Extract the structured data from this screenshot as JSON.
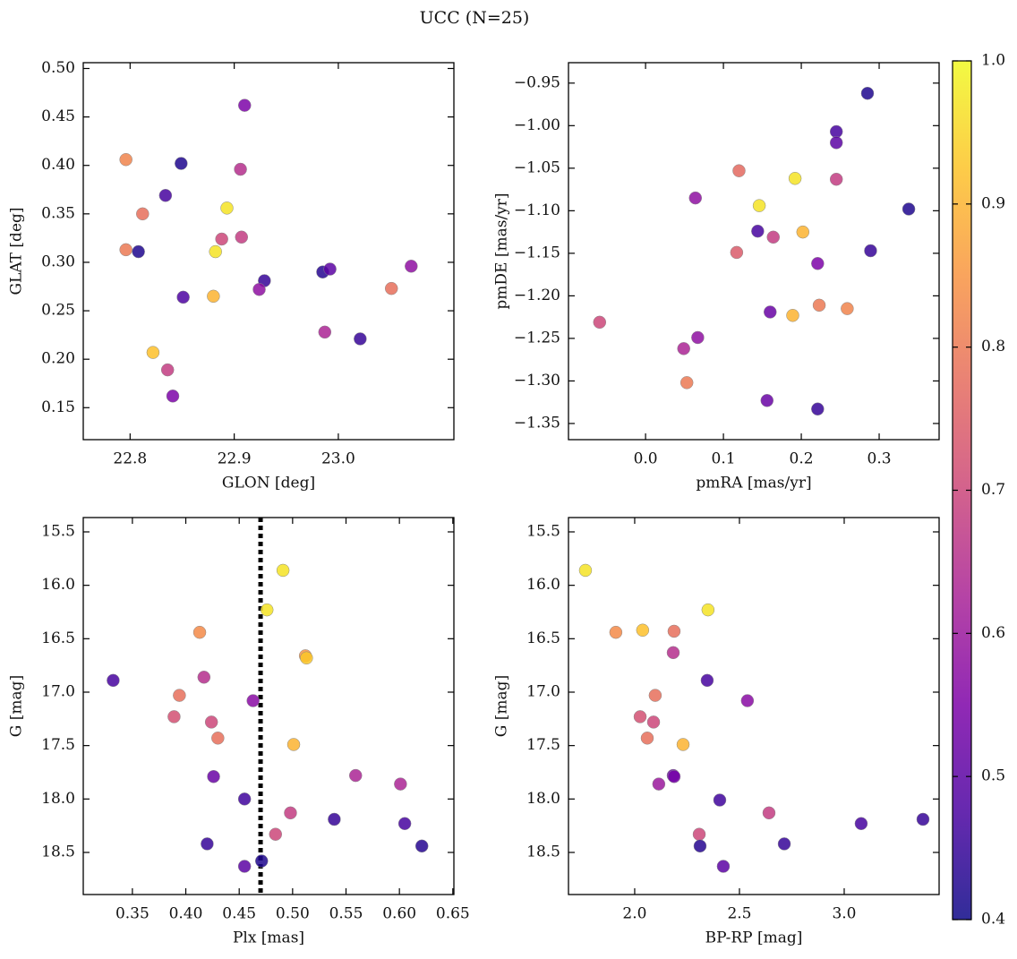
{
  "title": "UCC (N=25)",
  "colorbar": {
    "colormap": "plasma",
    "clim": [
      0.4,
      1.0
    ],
    "ticks": [
      0.4,
      0.5,
      0.6,
      0.7,
      0.8,
      0.9,
      {
        "value": 1.0,
        "label": "1.0"
      }
    ]
  },
  "chart_data": [
    {
      "type": "scatter",
      "xlabel": "GLON [deg]",
      "ylabel": "GLAT [deg]",
      "xlim": [
        22.755,
        23.111
      ],
      "ylim": [
        0.117,
        0.506
      ],
      "xticks": [
        22.8,
        22.9,
        {
          "value": 23.0,
          "label": "23.0"
        }
      ],
      "yticks": [
        0.15,
        {
          "value": 0.2,
          "label": "0.20"
        },
        0.25,
        {
          "value": 0.3,
          "label": "0.30"
        },
        0.35,
        {
          "value": 0.4,
          "label": "0.40"
        },
        0.45,
        {
          "value": 0.5,
          "label": "0.50"
        }
      ],
      "x": [
        22.796,
        22.849,
        22.91,
        22.906,
        22.834,
        22.812,
        22.893,
        22.888,
        22.907,
        22.796,
        22.808,
        22.882,
        22.929,
        22.924,
        22.851,
        22.88,
        22.985,
        22.992,
        23.07,
        23.051,
        22.987,
        23.021,
        22.822,
        22.836,
        22.841
      ],
      "y": [
        0.406,
        0.402,
        0.462,
        0.396,
        0.369,
        0.35,
        0.356,
        0.324,
        0.326,
        0.313,
        0.311,
        0.311,
        0.281,
        0.272,
        0.264,
        0.265,
        0.29,
        0.293,
        0.296,
        0.273,
        0.228,
        0.221,
        0.207,
        0.189,
        0.162
      ],
      "c": [
        0.82,
        0.42,
        0.55,
        0.65,
        0.47,
        0.78,
        0.97,
        0.7,
        0.68,
        0.8,
        0.42,
        0.97,
        0.45,
        0.58,
        0.48,
        0.9,
        0.43,
        0.5,
        0.58,
        0.78,
        0.63,
        0.45,
        0.92,
        0.68,
        0.55
      ]
    },
    {
      "type": "scatter",
      "xlabel": "pmRA [mas/yr]",
      "ylabel": "pmDE [mas/yr]",
      "xlim": [
        -0.099,
        0.377
      ],
      "ylim": [
        -1.369,
        -0.926
      ],
      "xticks": [
        {
          "value": 0.0,
          "label": "0.0"
        },
        0.1,
        0.2,
        0.3
      ],
      "yticks": [
        {
          "value": -1.35,
          "label": "−1.35"
        },
        {
          "value": -1.3,
          "label": "−1.30"
        },
        {
          "value": -1.25,
          "label": "−1.25"
        },
        {
          "value": -1.2,
          "label": "−1.20"
        },
        {
          "value": -1.15,
          "label": "−1.15"
        },
        {
          "value": -1.1,
          "label": "−1.10"
        },
        {
          "value": -1.05,
          "label": "−1.05"
        },
        {
          "value": -1.0,
          "label": "−1.00"
        },
        {
          "value": -0.95,
          "label": "−0.95"
        }
      ],
      "x": [
        0.285,
        0.245,
        0.245,
        0.245,
        0.192,
        0.12,
        0.064,
        0.146,
        0.338,
        0.144,
        0.164,
        0.202,
        0.117,
        0.289,
        0.221,
        0.16,
        0.189,
        0.223,
        0.259,
        -0.059,
        0.067,
        0.049,
        0.053,
        0.156,
        0.221
      ],
      "y": [
        -0.962,
        -1.007,
        -1.02,
        -1.063,
        -1.062,
        -1.053,
        -1.085,
        -1.094,
        -1.098,
        -1.124,
        -1.131,
        -1.125,
        -1.149,
        -1.147,
        -1.162,
        -1.219,
        -1.223,
        -1.211,
        -1.215,
        -1.231,
        -1.249,
        -1.262,
        -1.302,
        -1.323,
        -1.333
      ],
      "c": [
        0.42,
        0.47,
        0.5,
        0.68,
        0.97,
        0.77,
        0.58,
        0.97,
        0.42,
        0.47,
        0.68,
        0.9,
        0.74,
        0.45,
        0.55,
        0.52,
        0.9,
        0.8,
        0.82,
        0.7,
        0.58,
        0.63,
        0.8,
        0.52,
        0.45
      ]
    },
    {
      "type": "scatter",
      "xlabel": "Plx [mas]",
      "ylabel": "G [mag]",
      "xlim": [
        0.304,
        0.651
      ],
      "ylim": [
        18.894,
        15.366
      ],
      "vline": 0.47,
      "xticks": [
        0.35,
        {
          "value": 0.4,
          "label": "0.40"
        },
        0.45,
        {
          "value": 0.5,
          "label": "0.50"
        },
        0.55,
        {
          "value": 0.6,
          "label": "0.60"
        },
        0.65
      ],
      "yticks": [
        15.5,
        {
          "value": 16.0,
          "label": "16.0"
        },
        16.5,
        {
          "value": 17.0,
          "label": "17.0"
        },
        17.5,
        {
          "value": 18.0,
          "label": "18.0"
        },
        18.5
      ],
      "x": [
        0.491,
        0.476,
        0.413,
        0.512,
        0.513,
        0.417,
        0.332,
        0.394,
        0.463,
        0.389,
        0.424,
        0.43,
        0.501,
        0.426,
        0.559,
        0.601,
        0.455,
        0.498,
        0.539,
        0.605,
        0.484,
        0.42,
        0.621,
        0.471,
        0.455
      ],
      "y": [
        15.86,
        16.23,
        16.44,
        16.66,
        16.68,
        16.86,
        16.89,
        17.03,
        17.08,
        17.23,
        17.28,
        17.43,
        17.49,
        17.79,
        17.78,
        17.86,
        18.0,
        18.13,
        18.19,
        18.23,
        18.33,
        18.42,
        18.44,
        18.58,
        18.63
      ],
      "c": [
        0.97,
        0.97,
        0.83,
        0.85,
        0.93,
        0.65,
        0.47,
        0.78,
        0.57,
        0.72,
        0.7,
        0.78,
        0.9,
        0.52,
        0.63,
        0.63,
        0.46,
        0.68,
        0.45,
        0.47,
        0.7,
        0.45,
        0.43,
        0.42,
        0.5
      ]
    },
    {
      "type": "scatter",
      "xlabel": "BP-RP [mag]",
      "ylabel": "G [mag]",
      "xlim": [
        1.684,
        3.453
      ],
      "ylim": [
        18.894,
        15.366
      ],
      "xticks": [
        {
          "value": 2.0,
          "label": "2.0"
        },
        2.5,
        {
          "value": 3.0,
          "label": "3.0"
        }
      ],
      "yticks": [
        15.5,
        {
          "value": 16.0,
          "label": "16.0"
        },
        16.5,
        {
          "value": 17.0,
          "label": "17.0"
        },
        17.5,
        {
          "value": 18.0,
          "label": "18.0"
        },
        18.5
      ],
      "x": [
        1.765,
        2.35,
        1.91,
        2.038,
        2.188,
        2.184,
        2.346,
        2.098,
        2.538,
        2.026,
        2.09,
        2.06,
        2.231,
        2.184,
        2.188,
        2.115,
        2.406,
        2.641,
        3.376,
        3.081,
        2.308,
        2.714,
        2.312,
        2.423
      ],
      "y": [
        15.86,
        16.23,
        16.44,
        16.42,
        16.43,
        16.63,
        16.89,
        17.03,
        17.08,
        17.23,
        17.28,
        17.43,
        17.49,
        17.78,
        17.79,
        17.86,
        18.01,
        18.13,
        18.19,
        18.23,
        18.33,
        18.42,
        18.44,
        18.63
      ],
      "c": [
        0.97,
        0.97,
        0.83,
        0.92,
        0.78,
        0.65,
        0.47,
        0.78,
        0.57,
        0.72,
        0.7,
        0.78,
        0.9,
        0.52,
        0.54,
        0.6,
        0.46,
        0.68,
        0.45,
        0.47,
        0.7,
        0.45,
        0.43,
        0.5
      ]
    }
  ]
}
